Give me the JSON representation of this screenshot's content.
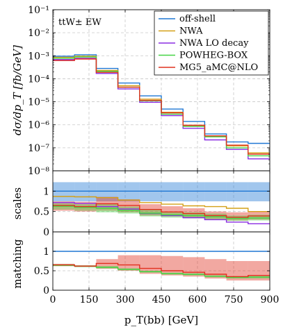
{
  "chart_data": {
    "type": "line",
    "step": true,
    "x_edges": [
      0,
      90,
      180,
      270,
      360,
      450,
      540,
      630,
      720,
      810,
      900
    ],
    "xlabel": "p_T(bb) [GeV]",
    "x_ticks": [
      0,
      150,
      300,
      450,
      600,
      750,
      900
    ],
    "annotation": "ttW± EW",
    "legend_position": "top-right",
    "colors": {
      "off-shell": "#1f77d4",
      "NWA": "#d4a017",
      "NWA LO decay": "#8a2be2",
      "POWHEG-BOX": "#44d444",
      "MG5_aMC@NLO": "#e0301e"
    },
    "panels": [
      {
        "name": "main",
        "ylabel": "dσ/dp_T [fb/GeV]",
        "yscale": "log",
        "ylim": [
          1e-08,
          0.1
        ],
        "y_ticks": [
          1e-08,
          1e-07,
          1e-06,
          1e-05,
          0.0001,
          0.001,
          0.01,
          0.1
        ],
        "y_tick_labels": [
          "10⁻⁸",
          "10⁻⁷",
          "10⁻⁶",
          "10⁻⁵",
          "10⁻⁴",
          "10⁻³",
          "10⁻²",
          "10⁻¹"
        ],
        "grid": true,
        "series": [
          {
            "name": "off-shell",
            "values": [
              0.00095,
              0.0011,
              0.00028,
              6.5e-05,
              1.8e-05,
              4.8e-06,
              1.4e-06,
              4e-07,
              1.8e-07,
              1.55e-07
            ]
          },
          {
            "name": "NWA",
            "values": [
              0.00085,
              0.00095,
              0.00023,
              5e-05,
              1.3e-05,
              3.5e-06,
              9.5e-07,
              3.3e-07,
              1.2e-07,
              6e-08
            ]
          },
          {
            "name": "NWA LO decay",
            "values": [
              0.00068,
              0.00078,
              0.00017,
              3.6e-05,
              9.5e-06,
              2.5e-06,
              7e-07,
              2.2e-07,
              8.5e-08,
              3.3e-08
            ]
          },
          {
            "name": "POWHEG-BOX",
            "values": [
              0.00078,
              0.00088,
              0.00021,
              4.3e-05,
              1.1e-05,
              2.9e-06,
              8.5e-07,
              3e-07,
              1e-07,
              4.5e-08
            ]
          },
          {
            "name": "MG5_aMC@NLO",
            "values": [
              0.00062,
              0.00072,
              0.00019,
              4.3e-05,
              1.15e-05,
              3.3e-06,
              9.5e-07,
              3.3e-07,
              1.3e-07,
              5.3e-08
            ]
          }
        ]
      },
      {
        "name": "scales",
        "ylabel": "scales",
        "ylim": [
          0,
          1.5
        ],
        "y_ticks": [
          0,
          0.5,
          1
        ],
        "grid": true,
        "bands": [
          {
            "series": "off-shell",
            "low": [
              0.75,
              0.75,
              0.75,
              0.75,
              0.75,
              0.75,
              0.75,
              0.75,
              0.75,
              0.75
            ],
            "high": [
              1.22,
              1.22,
              1.22,
              1.22,
              1.22,
              1.22,
              1.22,
              1.22,
              1.22,
              1.22
            ]
          },
          {
            "series": "MG5_aMC@NLO",
            "low": [
              0.52,
              0.5,
              0.52,
              0.48,
              0.4,
              0.38,
              0.35,
              0.3,
              0.28,
              0.3
            ],
            "high": [
              0.75,
              0.74,
              0.86,
              0.8,
              0.68,
              0.63,
              0.58,
              0.5,
              0.48,
              0.5
            ]
          },
          {
            "series": "POWHEG-BOX",
            "low": [
              0.55,
              0.52,
              0.48,
              0.45,
              0.38,
              0.35,
              0.33,
              0.3,
              0.27,
              0.28
            ],
            "high": [
              0.7,
              0.68,
              0.68,
              0.62,
              0.55,
              0.5,
              0.48,
              0.45,
              0.4,
              0.42
            ]
          }
        ],
        "series": [
          {
            "name": "off-shell",
            "values": [
              1,
              1,
              1,
              1,
              1,
              1,
              1,
              1,
              1,
              1
            ]
          },
          {
            "name": "NWA",
            "values": [
              0.87,
              0.86,
              0.84,
              0.78,
              0.72,
              0.68,
              0.64,
              0.62,
              0.58,
              0.5
            ]
          },
          {
            "name": "NWA LO decay",
            "values": [
              0.72,
              0.7,
              0.62,
              0.56,
              0.45,
              0.4,
              0.35,
              0.3,
              0.24,
              0.2
            ]
          },
          {
            "name": "POWHEG-BOX",
            "values": [
              0.63,
              0.6,
              0.58,
              0.53,
              0.46,
              0.42,
              0.4,
              0.37,
              0.33,
              0.34
            ]
          },
          {
            "name": "MG5_aMC@NLO",
            "values": [
              0.65,
              0.62,
              0.69,
              0.65,
              0.55,
              0.49,
              0.45,
              0.4,
              0.36,
              0.39
            ]
          }
        ]
      },
      {
        "name": "matching",
        "ylabel": "matching",
        "ylim": [
          0,
          1.5
        ],
        "y_ticks": [
          0,
          0.5,
          1
        ],
        "grid": true,
        "bands": [
          {
            "series": "MG5_aMC@NLO",
            "low": [
              0.62,
              0.6,
              0.55,
              0.5,
              0.42,
              0.38,
              0.35,
              0.3,
              0.25,
              0.25
            ],
            "high": [
              0.68,
              0.64,
              0.8,
              0.9,
              0.9,
              0.88,
              0.85,
              0.8,
              0.75,
              0.75
            ]
          },
          {
            "series": "POWHEG-BOX",
            "low": [
              0.62,
              0.59,
              0.56,
              0.51,
              0.45,
              0.4,
              0.38,
              0.33,
              0.3,
              0.3
            ],
            "high": [
              0.67,
              0.64,
              0.62,
              0.56,
              0.5,
              0.45,
              0.43,
              0.38,
              0.36,
              0.36
            ]
          }
        ],
        "series": [
          {
            "name": "off-shell",
            "values": [
              1,
              1,
              1,
              1,
              1,
              1,
              1,
              1,
              1,
              1
            ]
          },
          {
            "name": "POWHEG-BOX",
            "values": [
              0.64,
              0.62,
              0.59,
              0.54,
              0.48,
              0.43,
              0.41,
              0.36,
              0.33,
              0.34
            ]
          },
          {
            "name": "MG5_aMC@NLO",
            "values": [
              0.65,
              0.62,
              0.69,
              0.65,
              0.56,
              0.5,
              0.46,
              0.41,
              0.35,
              0.38
            ]
          }
        ]
      }
    ]
  }
}
